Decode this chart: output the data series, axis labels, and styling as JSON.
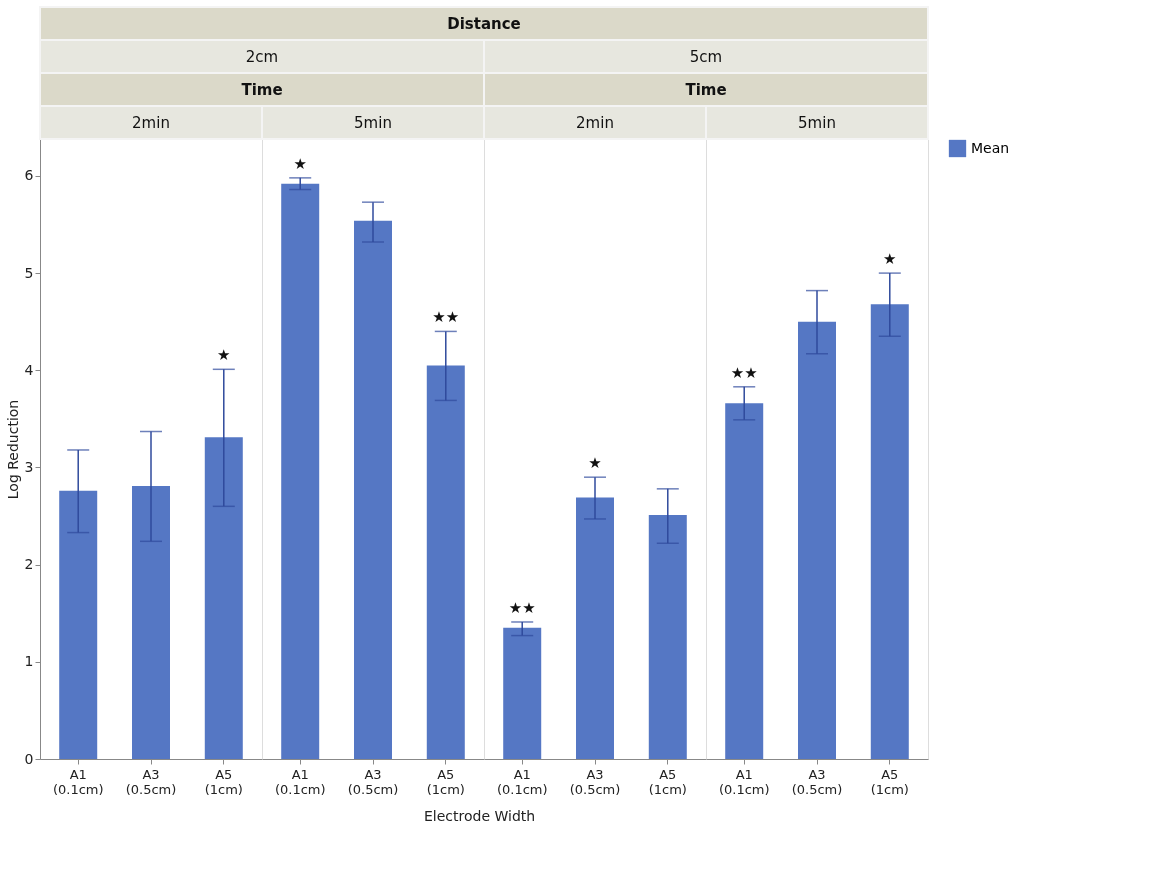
{
  "chart_data": [
    {
      "type": "bar",
      "title": "2min",
      "ylabel": "Log Reduction",
      "legend": "right",
      "categories": [
        "A1 (0.1cm)",
        "A3 (0.5cm)",
        "A5 (1cm)"
      ],
      "series": [
        {
          "name": "Mean",
          "color": "#5577c4",
          "values": [
            2.76,
            2.81,
            3.31
          ],
          "errors": [
            [
              2.33,
              3.18
            ],
            [
              2.24,
              3.37
            ],
            [
              2.6,
              4.01
            ]
          ]
        }
      ],
      "ylim": [
        0,
        6.38
      ],
      "yticks": [
        0,
        1,
        2,
        3,
        4,
        5,
        6
      ],
      "annotations": [
        "Distance",
        "2cm",
        "Time",
        {
          "text": "★",
          "x": "A5 (1cm)",
          "y": 4.01
        }
      ]
    },
    {
      "type": "bar",
      "title": "5min",
      "tick_labels": "x",
      "xlabel": "Electrode Width",
      "categories": [
        "A1 (0.1cm)",
        "A3 (0.5cm)",
        "A5 (1cm)"
      ],
      "series": [
        {
          "color": "#5577c4",
          "values": [
            5.92,
            5.54,
            4.05
          ],
          "errors": [
            [
              5.86,
              5.98
            ],
            [
              5.32,
              5.73
            ],
            [
              3.69,
              4.4
            ]
          ]
        }
      ],
      "ylim": [
        0,
        6.38
      ],
      "yticks": [
        0,
        1,
        2,
        3,
        4,
        5,
        6
      ],
      "annotations": [
        {
          "text": "★",
          "x": "A1 (0.1cm)",
          "y": 5.98
        },
        {
          "text": "★★",
          "x": "A5 (1cm)",
          "y": 4.4
        }
      ]
    },
    {
      "type": "bar",
      "title": "2min",
      "tick_labels": "x",
      "categories": [
        "A1 (0.1cm)",
        "A3 (0.5cm)",
        "A5 (1cm)"
      ],
      "series": [
        {
          "color": "#5577c4",
          "values": [
            1.35,
            2.69,
            2.51
          ],
          "errors": [
            [
              1.27,
              1.41
            ],
            [
              2.47,
              2.9
            ],
            [
              2.22,
              2.78
            ]
          ]
        }
      ],
      "ylim": [
        0,
        6.38
      ],
      "yticks": [
        0,
        1,
        2,
        3,
        4,
        5,
        6
      ],
      "annotations": [
        "5cm",
        "Time",
        {
          "text": "★★",
          "x": "A1 (0.1cm)",
          "y": 1.41
        },
        {
          "text": "★",
          "x": "A3 (0.5cm)",
          "y": 2.9
        }
      ]
    },
    {
      "type": "bar",
      "title": "5min",
      "tick_labels": "x",
      "categories": [
        "A1 (0.1cm)",
        "A3 (0.5cm)",
        "A5 (1cm)"
      ],
      "series": [
        {
          "color": "#5577c4",
          "values": [
            3.66,
            4.5,
            4.68
          ],
          "errors": [
            [
              3.49,
              3.83
            ],
            [
              4.17,
              4.82
            ],
            [
              4.35,
              5.0
            ]
          ]
        }
      ],
      "ylim": [
        0,
        6.38
      ],
      "yticks": [
        0,
        1,
        2,
        3,
        4,
        5,
        6
      ],
      "annotations": [
        {
          "text": "★★",
          "x": "A1 (0.1cm)",
          "y": 3.83
        },
        {
          "text": "★",
          "x": "A5 (1cm)",
          "y": 5.0
        }
      ]
    }
  ]
}
